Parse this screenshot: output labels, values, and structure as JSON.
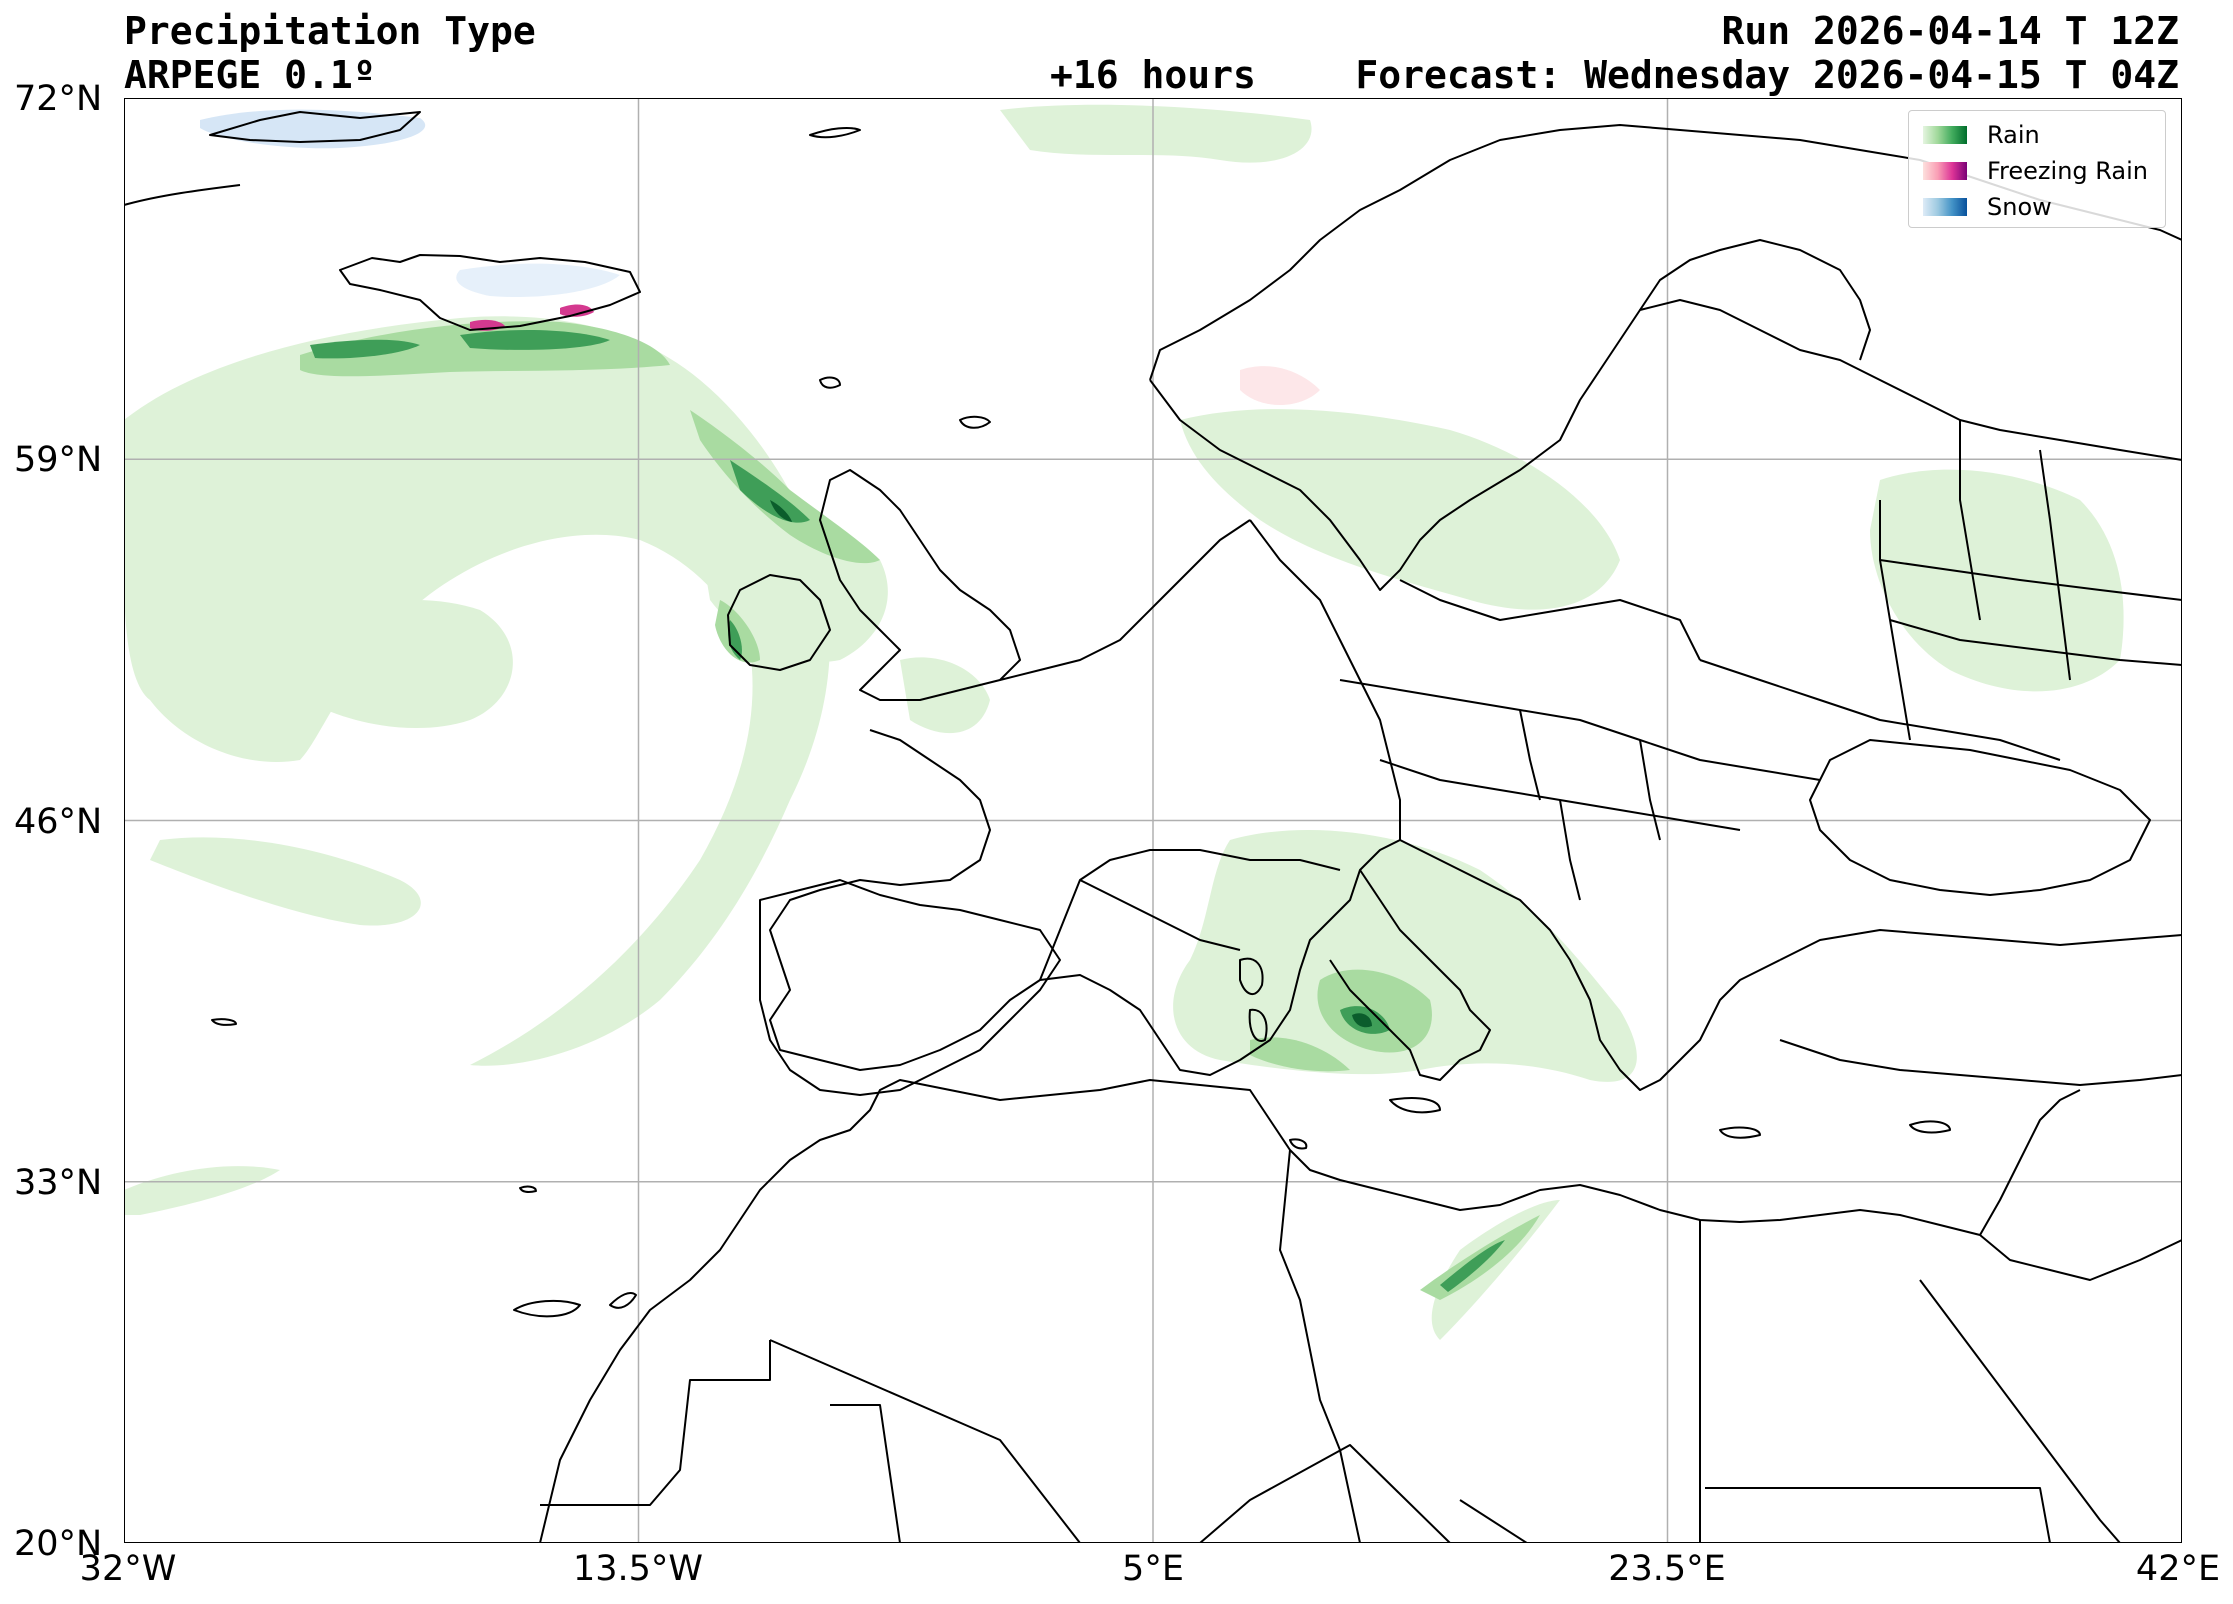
{
  "header": {
    "title": "Precipitation Type",
    "model": "ARPEGE 0.1º",
    "run": "Run 2026-04-14 T 12Z",
    "lead": "+16 hours",
    "forecast": "Forecast: Wednesday 2026-04-15 T 04Z"
  },
  "axes": {
    "lat_ticks": [
      "72°N",
      "59°N",
      "46°N",
      "33°N",
      "20°N"
    ],
    "lon_ticks": [
      "32°W",
      "13.5°W",
      "5°E",
      "23.5°E",
      "42°E"
    ],
    "lat_range": [
      20,
      72
    ],
    "lon_range": [
      -32,
      42
    ],
    "grid": true
  },
  "legend": {
    "placement": "top-right",
    "items": [
      {
        "label": "Rain",
        "colors": [
          "#e5f5e0",
          "#a1d99b",
          "#41ab5d",
          "#006d2c"
        ]
      },
      {
        "label": "Freezing Rain",
        "colors": [
          "#fde0dd",
          "#fa9fb5",
          "#dd3497",
          "#7a0177"
        ]
      },
      {
        "label": "Snow",
        "colors": [
          "#deebf7",
          "#9ecae1",
          "#4292c6",
          "#08519c"
        ]
      }
    ]
  },
  "colors": {
    "rain_light": "#def2d8",
    "rain_mid": "#a9dba1",
    "rain_dark": "#3f9e58",
    "rain_darkest": "#0b5d2c",
    "freezing": "#d4398f",
    "snow_light": "#d6e6f6",
    "grid": "#b0b0b0",
    "coast": "#000000"
  }
}
